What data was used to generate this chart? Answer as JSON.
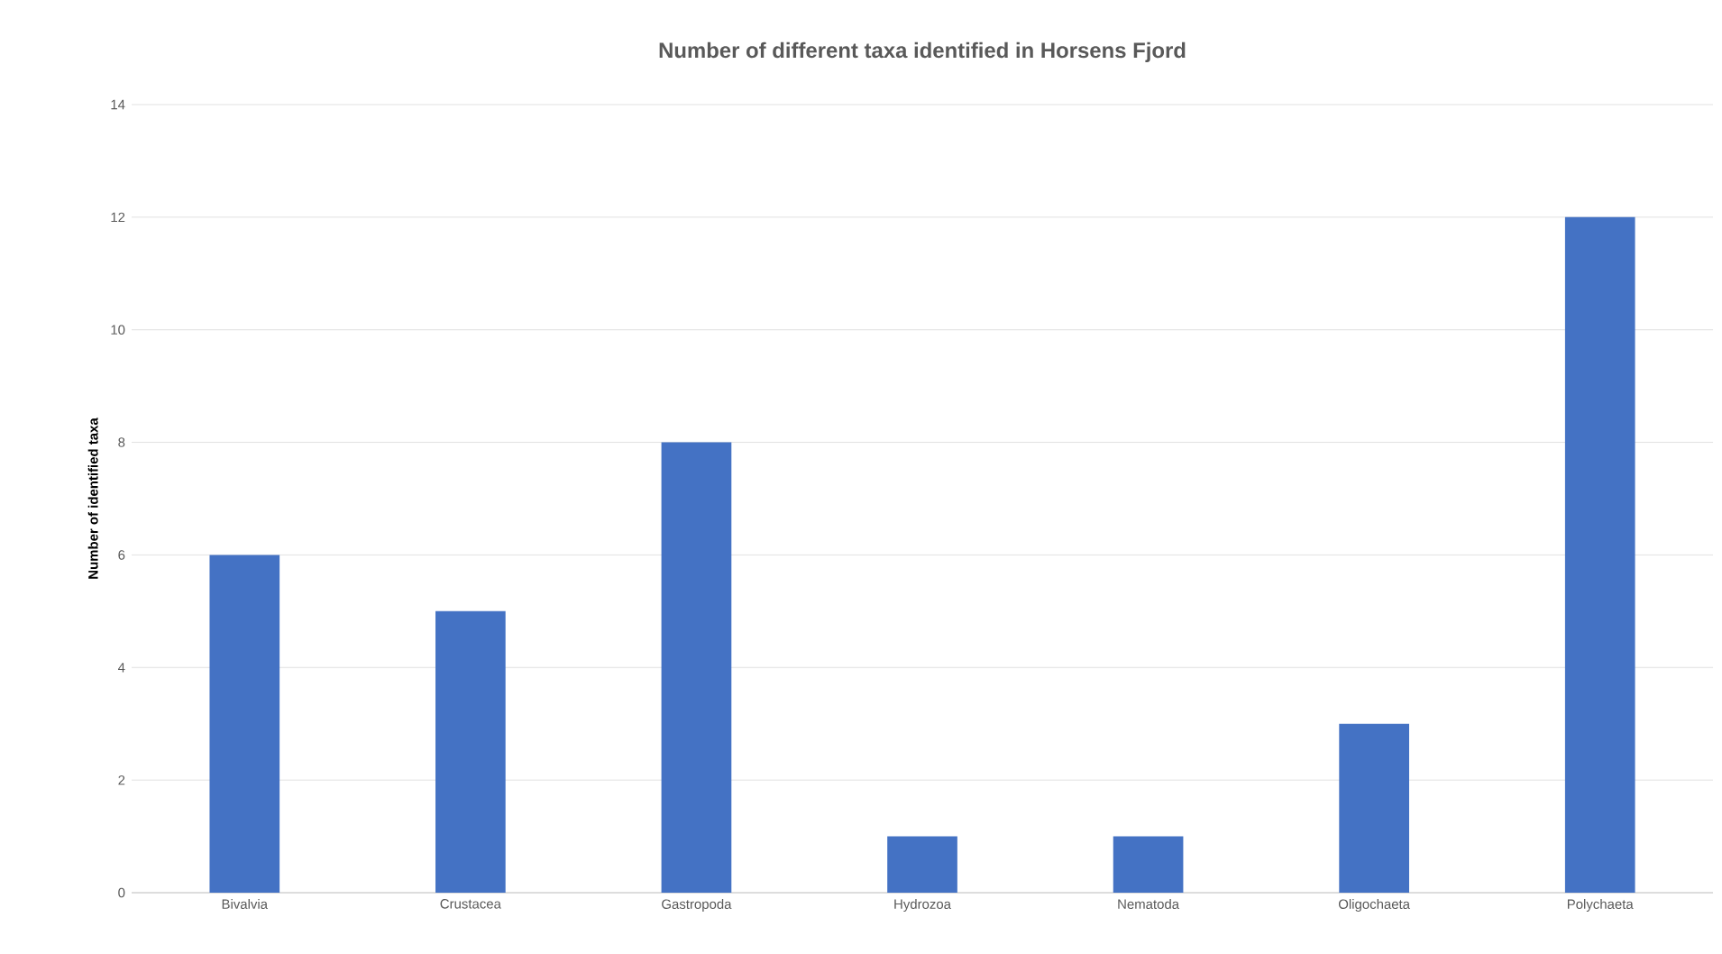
{
  "chart_data": {
    "type": "bar",
    "title": "Number of different taxa identified in Horsens Fjord",
    "ylabel": "Number of identified taxa",
    "categories": [
      "Bivalvia",
      "Crustacea",
      "Gastropoda",
      "Hydrozoa",
      "Nematoda",
      "Oligochaeta",
      "Polychaeta"
    ],
    "values": [
      6,
      5,
      8,
      1,
      1,
      3,
      12
    ],
    "color": "#4472c4",
    "ylim": [
      0,
      14
    ],
    "yticks": [
      0,
      2,
      4,
      6,
      8,
      10,
      12,
      14
    ],
    "grid": "y"
  }
}
